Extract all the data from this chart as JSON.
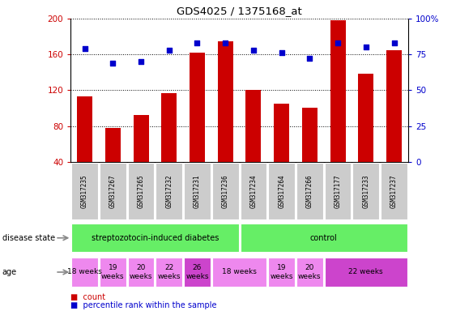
{
  "title": "GDS4025 / 1375168_at",
  "samples": [
    "GSM317235",
    "GSM317267",
    "GSM317265",
    "GSM317232",
    "GSM317231",
    "GSM317236",
    "GSM317234",
    "GSM317264",
    "GSM317266",
    "GSM317177",
    "GSM317233",
    "GSM317237"
  ],
  "counts": [
    113,
    78,
    92,
    117,
    162,
    175,
    120,
    105,
    100,
    198,
    138,
    165
  ],
  "percentiles": [
    79,
    69,
    70,
    78,
    83,
    83,
    78,
    76,
    72,
    83,
    80,
    83
  ],
  "ylim_left": [
    40,
    200
  ],
  "yticks_left": [
    40,
    80,
    120,
    160,
    200
  ],
  "yticks_right": [
    0,
    25,
    50,
    75,
    100
  ],
  "bar_color": "#cc0000",
  "dot_color": "#0000cc",
  "green_color": "#66ee66",
  "pink_color": "#ee88ee",
  "darkpink_color": "#cc44cc",
  "gray_color": "#cccccc",
  "age_groups": [
    {
      "label": "18 weeks",
      "cols": [
        0,
        1
      ],
      "two_line": false
    },
    {
      "label": "19\nweeks",
      "cols": [
        1,
        2
      ],
      "two_line": true
    },
    {
      "label": "20\nweeks",
      "cols": [
        2,
        3
      ],
      "two_line": true
    },
    {
      "label": "22\nweeks",
      "cols": [
        3,
        4
      ],
      "two_line": true
    },
    {
      "label": "26\nweeks",
      "cols": [
        4,
        5
      ],
      "two_line": true,
      "dark": true
    },
    {
      "label": "18 weeks",
      "cols": [
        5,
        7
      ],
      "two_line": false
    },
    {
      "label": "19\nweeks",
      "cols": [
        7,
        8
      ],
      "two_line": true
    },
    {
      "label": "20\nweeks",
      "cols": [
        8,
        9
      ],
      "two_line": true
    },
    {
      "label": "22 weeks",
      "cols": [
        9,
        12
      ],
      "two_line": false,
      "dark": true
    }
  ]
}
